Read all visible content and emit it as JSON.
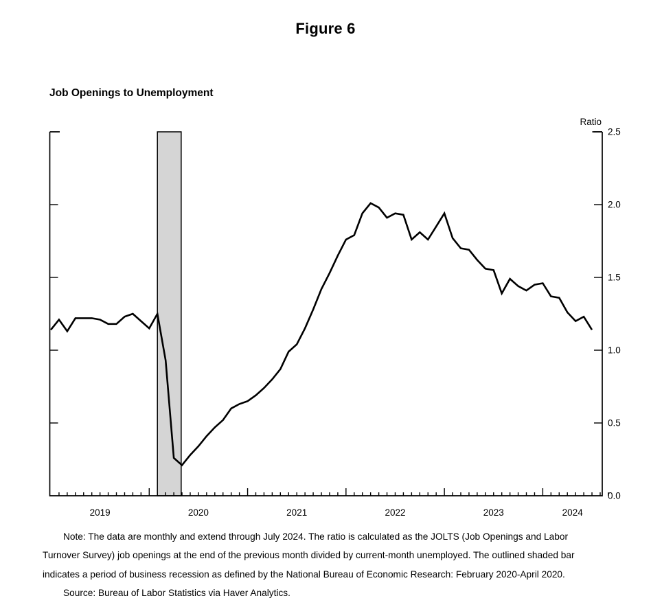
{
  "figure_title": "Figure 6",
  "chart_title": "Job Openings to Unemployment",
  "axis_unit_label": "Ratio",
  "note_lines": [
    "Note: The data are monthly and extend through July 2024. The ratio is calculated as the JOLTS (Job Openings and Labor",
    "Turnover Survey) job openings at the end of the previous month divided by current-month unemployed. The outlined shaded bar",
    "indicates a period of business recession as defined by the National Bureau of Economic Research: February 2020-April 2020.",
    "Source: Bureau of Labor Statistics via Haver Analytics."
  ],
  "colors": {
    "line": "#000000",
    "axis": "#000000",
    "recession_fill": "#d5d5d5",
    "background": "#ffffff"
  },
  "chart_data": {
    "type": "line",
    "title": "Job Openings to Unemployment",
    "ylabel": "Ratio",
    "ylim": [
      0.0,
      2.5
    ],
    "yticks": [
      0.0,
      0.5,
      1.0,
      1.5,
      2.0,
      2.5
    ],
    "x_start": "2019-01",
    "x_end": "2024-07",
    "frequency": "monthly",
    "grid": false,
    "legend_position": "none",
    "year_labels": [
      "2019",
      "2020",
      "2021",
      "2022",
      "2023",
      "2024"
    ],
    "recession_band": {
      "start": "2020-02",
      "end": "2020-04",
      "label": "NBER recession: February 2020-April 2020"
    },
    "series": [
      {
        "name": "Job openings to unemployment ratio",
        "values": [
          1.14,
          1.21,
          1.13,
          1.22,
          1.22,
          1.22,
          1.21,
          1.18,
          1.18,
          1.23,
          1.25,
          1.2,
          1.15,
          1.25,
          0.93,
          0.26,
          0.21,
          0.28,
          0.34,
          0.41,
          0.47,
          0.52,
          0.6,
          0.63,
          0.65,
          0.69,
          0.74,
          0.8,
          0.87,
          0.99,
          1.04,
          1.15,
          1.28,
          1.42,
          1.53,
          1.65,
          1.76,
          1.79,
          1.94,
          2.01,
          1.98,
          1.91,
          1.94,
          1.93,
          1.76,
          1.81,
          1.76,
          1.85,
          1.94,
          1.77,
          1.7,
          1.69,
          1.62,
          1.56,
          1.55,
          1.39,
          1.49,
          1.44,
          1.41,
          1.45,
          1.46,
          1.37,
          1.36,
          1.26,
          1.2,
          1.23,
          1.14
        ]
      }
    ]
  }
}
